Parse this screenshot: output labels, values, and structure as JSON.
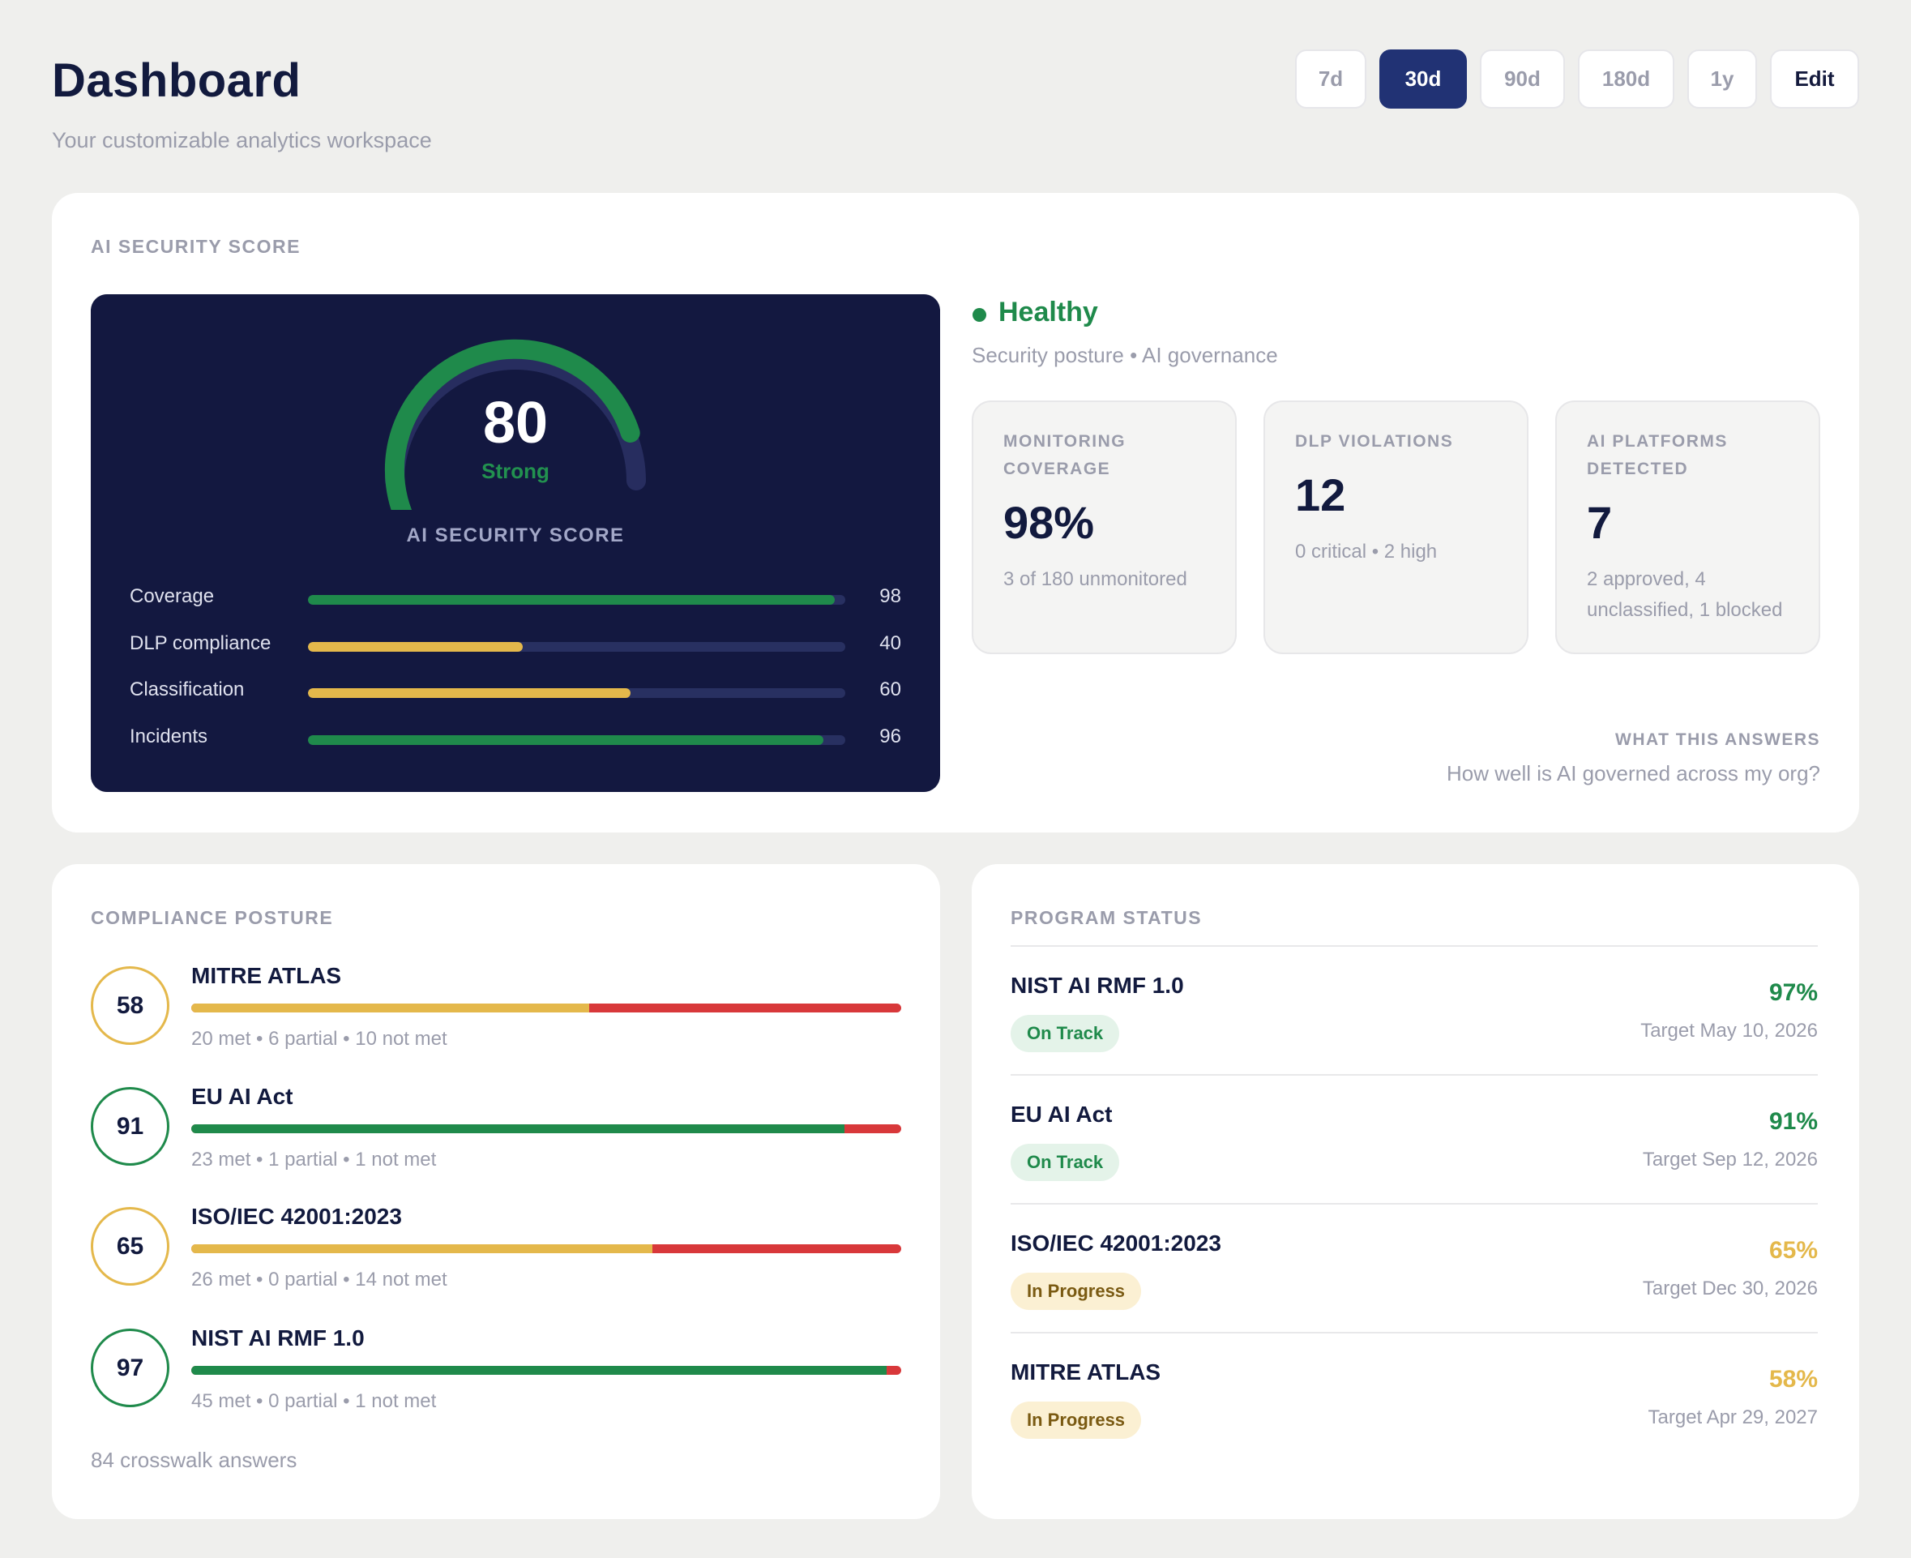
{
  "header": {
    "title": "Dashboard",
    "subtitle": "Your customizable analytics workspace",
    "ranges": [
      "7d",
      "30d",
      "90d",
      "180d",
      "1y"
    ],
    "active_range": "30d",
    "edit_label": "Edit"
  },
  "security": {
    "section_label": "AI SECURITY SCORE",
    "score": "80",
    "score_value": 80,
    "rating": "Strong",
    "caption": "AI SECURITY SCORE",
    "metrics": [
      {
        "label": "Coverage",
        "value": "98",
        "fill": 98,
        "color": "#1f8a4b"
      },
      {
        "label": "DLP compliance",
        "value": "40",
        "fill": 40,
        "color": "#e4b84b"
      },
      {
        "label": "Classification",
        "value": "60",
        "fill": 60,
        "color": "#e4b84b"
      },
      {
        "label": "Incidents",
        "value": "96",
        "fill": 96,
        "color": "#1f8a4b"
      }
    ],
    "status": "Healthy",
    "status_sub": "Security posture • AI governance",
    "stats": [
      {
        "label": "MONITORING COVERAGE",
        "value": "98%",
        "note": "3 of 180 unmonitored"
      },
      {
        "label": "DLP VIOLATIONS",
        "value": "12",
        "note": "0 critical • 2 high"
      },
      {
        "label": "AI PLATFORMS DETECTED",
        "value": "7",
        "note": "2 approved, 4 unclassified, 1 blocked"
      }
    ],
    "answers_label": "WHAT THIS ANSWERS",
    "answers_question": "How well is AI governed across my org?"
  },
  "compliance": {
    "section_label": "COMPLIANCE POSTURE",
    "items": [
      {
        "score": "58",
        "name": "MITRE ATLAS",
        "detail": "20 met • 6 partial • 10 not met",
        "met_fraction": 0.56,
        "color": "#e4b84b"
      },
      {
        "score": "91",
        "name": "EU AI Act",
        "detail": "23 met • 1 partial • 1 not met",
        "met_fraction": 0.92,
        "color": "#1f8a4b"
      },
      {
        "score": "65",
        "name": "ISO/IEC 42001:2023",
        "detail": "26 met • 0 partial • 14 not met",
        "met_fraction": 0.65,
        "color": "#e4b84b"
      },
      {
        "score": "97",
        "name": "NIST AI RMF 1.0",
        "detail": "45 met • 0 partial • 1 not met",
        "met_fraction": 0.98,
        "color": "#1f8a4b"
      }
    ],
    "footer": "84 crosswalk answers"
  },
  "program": {
    "section_label": "PROGRAM STATUS",
    "items": [
      {
        "name": "NIST AI RMF 1.0",
        "badge": "On Track",
        "pct": "97%",
        "target": "Target May 10, 2026",
        "tone": "green"
      },
      {
        "name": "EU AI Act",
        "badge": "On Track",
        "pct": "91%",
        "target": "Target Sep 12, 2026",
        "tone": "green"
      },
      {
        "name": "ISO/IEC 42001:2023",
        "badge": "In Progress",
        "pct": "65%",
        "target": "Target Dec 30, 2026",
        "tone": "amber"
      },
      {
        "name": "MITRE ATLAS",
        "badge": "In Progress",
        "pct": "58%",
        "target": "Target Apr 29, 2027",
        "tone": "amber"
      }
    ]
  },
  "colors": {
    "green": "#1f8a4b",
    "amber": "#e4b84b",
    "red": "#d8383a",
    "navy": "#131840",
    "accent": "#213274"
  }
}
